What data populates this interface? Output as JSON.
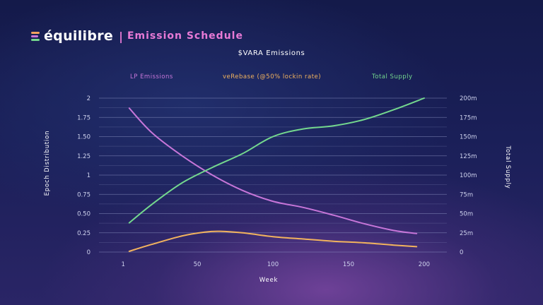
{
  "brand": {
    "logo_text": "équilibre",
    "separator": "|",
    "subtitle": "Emission Schedule"
  },
  "colors": {
    "lp": "#c776d9",
    "verebase": "#f2b35e",
    "supply": "#74d88e",
    "grid": "#9aa3cf"
  },
  "chart_data": {
    "type": "line",
    "title": "$VARA Emissions",
    "xlabel": "Week",
    "ylabel": "Epoch Distribution",
    "y2label": "Total Supply",
    "xlim": [
      -15,
      215
    ],
    "ylim": [
      0,
      2
    ],
    "y2lim": [
      0,
      200
    ],
    "x_ticks": [
      1,
      50,
      100,
      150,
      200
    ],
    "x_tick_labels": [
      "1",
      "50",
      "100",
      "150",
      "200"
    ],
    "y_ticks": [
      0,
      0.25,
      0.5,
      0.75,
      1,
      1.25,
      1.5,
      1.75,
      2
    ],
    "y_tick_labels": [
      "0",
      "0.25",
      "0.50",
      "0.75",
      "1",
      "1.25",
      "1.50",
      "1.75",
      "2"
    ],
    "y2_ticks": [
      0,
      25,
      50,
      75,
      100,
      125,
      150,
      175,
      200
    ],
    "y2_tick_labels": [
      "0",
      "25m",
      "50m",
      "75m",
      "100m",
      "125m",
      "150m",
      "175m",
      "200m"
    ],
    "grid": true,
    "legend_position": "top",
    "series": [
      {
        "name": "LP Emissions",
        "axis": "left",
        "color": "#c776d9",
        "x": [
          5,
          20,
          40,
          60,
          80,
          100,
          120,
          140,
          160,
          180,
          195
        ],
        "y": [
          1.87,
          1.55,
          1.25,
          1.0,
          0.8,
          0.66,
          0.58,
          0.48,
          0.37,
          0.28,
          0.24
        ]
      },
      {
        "name": "veRebase (@50% lockin rate)",
        "axis": "left",
        "color": "#f2b35e",
        "x": [
          5,
          20,
          40,
          55,
          65,
          80,
          100,
          120,
          140,
          160,
          180,
          195
        ],
        "y": [
          0.01,
          0.1,
          0.21,
          0.26,
          0.27,
          0.25,
          0.2,
          0.17,
          0.14,
          0.12,
          0.09,
          0.07
        ]
      },
      {
        "name": "Total Supply",
        "axis": "right",
        "color": "#74d88e",
        "x": [
          5,
          20,
          40,
          60,
          80,
          100,
          120,
          140,
          160,
          180,
          200
        ],
        "y": [
          38,
          62,
          90,
          110,
          128,
          150,
          160,
          164,
          172,
          185,
          200
        ]
      }
    ]
  }
}
